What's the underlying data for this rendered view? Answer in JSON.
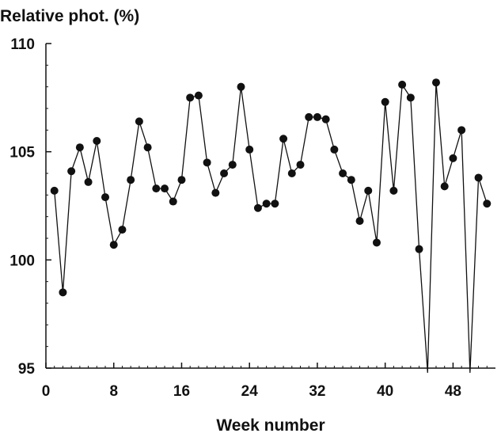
{
  "chart_data": {
    "type": "line",
    "title": "",
    "xlabel": "Week number",
    "ylabel": "Relative phot. (%)",
    "xlim": [
      0,
      53
    ],
    "ylim": [
      95,
      110
    ],
    "xticks": [
      0,
      8,
      16,
      24,
      32,
      40,
      48
    ],
    "yticks": [
      95,
      100,
      105,
      110
    ],
    "xtick_labels": [
      "0",
      "8",
      "16",
      "24",
      "32",
      "40",
      "48"
    ],
    "ytick_labels": [
      "95",
      "100",
      "105",
      "110"
    ],
    "grid": false,
    "legend": "none",
    "series": [
      {
        "color": "#111111",
        "marker": "circle",
        "x": [
          1,
          2,
          3,
          4,
          5,
          6,
          7,
          8,
          9,
          10,
          11,
          12,
          13,
          14,
          15,
          16,
          17,
          18,
          19,
          20,
          21,
          22,
          23,
          24,
          25,
          26,
          27,
          28,
          29,
          30,
          31,
          32,
          33,
          34,
          35,
          36,
          37,
          38,
          39,
          40,
          41,
          42,
          43,
          44,
          45,
          46,
          47,
          48,
          49,
          50,
          51,
          52
        ],
        "y": [
          103.2,
          98.5,
          104.1,
          105.2,
          103.6,
          105.5,
          102.9,
          100.7,
          101.4,
          103.7,
          106.4,
          105.2,
          103.3,
          103.3,
          102.7,
          103.7,
          107.5,
          107.6,
          104.5,
          103.1,
          104.0,
          104.4,
          108.0,
          105.1,
          102.4,
          102.6,
          102.6,
          105.6,
          104.0,
          104.4,
          106.6,
          106.6,
          106.5,
          105.1,
          104.0,
          103.7,
          101.8,
          103.2,
          100.8,
          107.3,
          103.2,
          108.1,
          107.5,
          100.5,
          94.8,
          108.2,
          103.4,
          104.7,
          106.0,
          94.8,
          103.8,
          102.6
        ],
        "markers_shown": [
          true,
          true,
          true,
          true,
          true,
          true,
          true,
          true,
          true,
          true,
          true,
          true,
          true,
          true,
          true,
          true,
          true,
          true,
          true,
          true,
          true,
          true,
          true,
          true,
          true,
          true,
          true,
          true,
          true,
          true,
          true,
          true,
          true,
          true,
          true,
          true,
          true,
          true,
          true,
          true,
          true,
          true,
          true,
          true,
          false,
          true,
          true,
          true,
          true,
          false,
          true,
          true
        ]
      }
    ]
  }
}
